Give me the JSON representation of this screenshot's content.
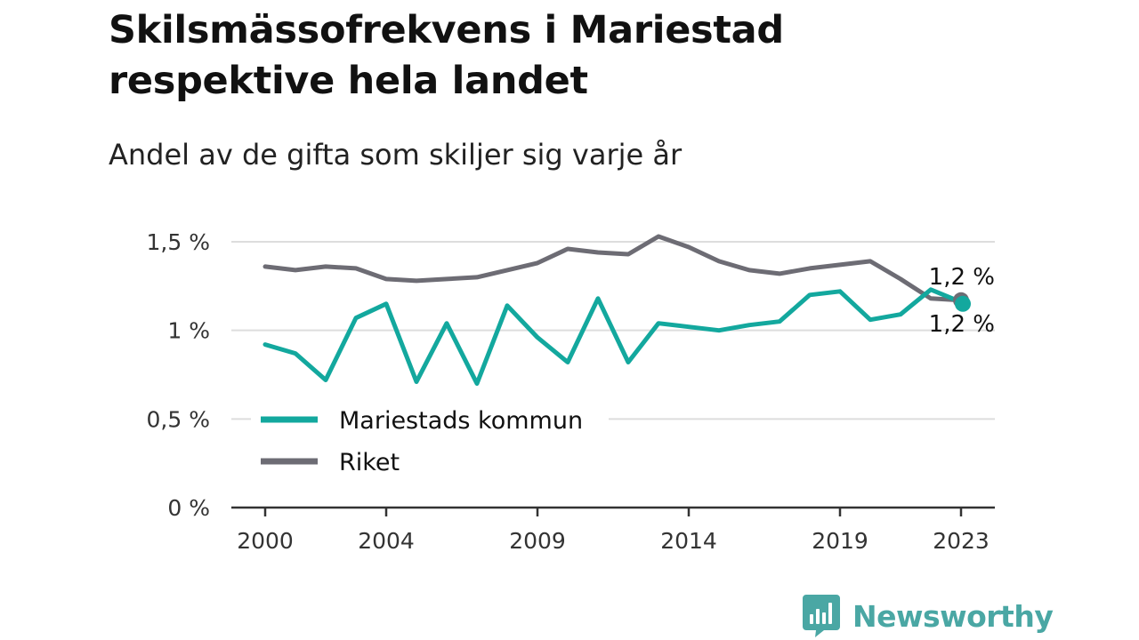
{
  "title": "Skilsmässofrekvens i Mariestad respektive hela landet",
  "subtitle": "Andel av de gifta som skiljer sig varje år",
  "brand": "Newsworthy",
  "colors": {
    "mariestad": "#13a89e",
    "riket": "#6d6c74",
    "grid": "#dddddd",
    "axis": "#333333",
    "brand": "#4aa7a4"
  },
  "chart_data": {
    "type": "line",
    "x": [
      2000,
      2001,
      2002,
      2003,
      2004,
      2005,
      2006,
      2007,
      2008,
      2009,
      2010,
      2011,
      2012,
      2013,
      2014,
      2015,
      2016,
      2017,
      2018,
      2019,
      2020,
      2021,
      2022,
      2023
    ],
    "x_ticks": [
      2000,
      2004,
      2009,
      2014,
      2019,
      2023
    ],
    "y_ticks": [
      0,
      0.5,
      1,
      1.5
    ],
    "y_tick_labels": [
      "0 %",
      "0,5 %",
      "1 %",
      "1,5 %"
    ],
    "ylim": [
      0,
      1.5
    ],
    "grid": true,
    "legend_position": "bottom-left",
    "series": [
      {
        "name": "Mariestads kommun",
        "color": "#13a89e",
        "values": [
          0.92,
          0.87,
          0.72,
          1.07,
          1.15,
          0.71,
          1.04,
          0.7,
          1.14,
          0.96,
          0.82,
          1.18,
          0.82,
          1.04,
          1.02,
          1.0,
          1.03,
          1.05,
          1.2,
          1.22,
          1.06,
          1.09,
          1.23,
          1.16
        ],
        "end_label": "1,2 %"
      },
      {
        "name": "Riket",
        "color": "#6d6c74",
        "values": [
          1.36,
          1.34,
          1.36,
          1.35,
          1.29,
          1.28,
          1.29,
          1.3,
          1.34,
          1.38,
          1.46,
          1.44,
          1.43,
          1.53,
          1.47,
          1.39,
          1.34,
          1.32,
          1.35,
          1.37,
          1.39,
          1.29,
          1.18,
          1.17
        ],
        "end_label": "1,2 %"
      }
    ]
  }
}
